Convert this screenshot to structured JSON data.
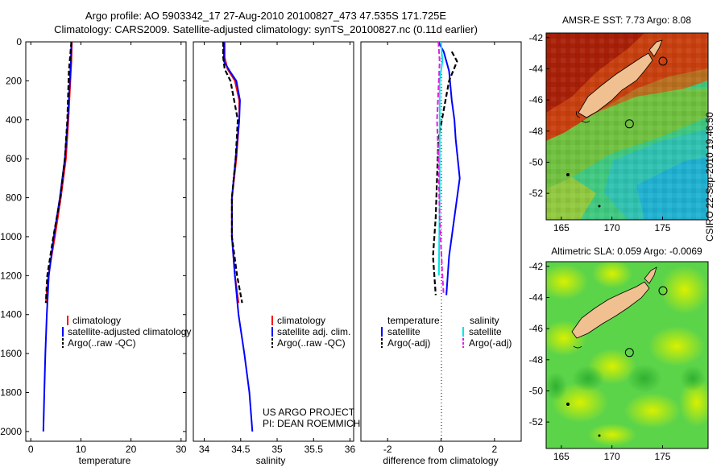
{
  "header": {
    "line1": "Argo profile: AO 5903342_17 27-Aug-2010 20100827_473 47.535S 171.725E",
    "line2": "Climatology: CARS2009. Satellite-adjusted climatology: synTS_20100827.nc (0.11d earlier)"
  },
  "credit": {
    "line1": "US ARGO PROJECT",
    "line2": "PI: DEAN ROEMMICH"
  },
  "stamp": "CSIRO 22-Sep-2010 19:46:50",
  "colors": {
    "climatology": "#ff0000",
    "satellite": "#0000ff",
    "argo": "#000000",
    "sal_satellite": "#00e5e5",
    "sal_argo": "#e020e0"
  },
  "chart_data": [
    {
      "type": "line",
      "name": "temperature-profile",
      "xlabel": "temperature",
      "ylabel": "",
      "xlim": [
        -1,
        31
      ],
      "ylim": [
        2050,
        0
      ],
      "xticks": [
        0,
        10,
        20,
        30
      ],
      "yticks": [
        0,
        200,
        400,
        600,
        800,
        1000,
        1200,
        1400,
        1600,
        1800,
        2000
      ],
      "series": [
        {
          "name": "climatology",
          "style": "solid-red",
          "points": [
            [
              8.2,
              0
            ],
            [
              8.1,
              100
            ],
            [
              7.9,
              200
            ],
            [
              7.5,
              400
            ],
            [
              7.0,
              600
            ],
            [
              6.0,
              800
            ],
            [
              4.8,
              1000
            ],
            [
              3.5,
              1200
            ],
            [
              3.0,
              1340
            ]
          ]
        },
        {
          "name": "satellite-adjusted climatology",
          "style": "solid-blue",
          "points": [
            [
              8.1,
              0
            ],
            [
              8.0,
              100
            ],
            [
              7.8,
              200
            ],
            [
              7.4,
              400
            ],
            [
              6.8,
              600
            ],
            [
              5.8,
              800
            ],
            [
              4.6,
              1000
            ],
            [
              3.6,
              1200
            ],
            [
              3.2,
              1400
            ],
            [
              2.9,
              1600
            ],
            [
              2.7,
              1800
            ],
            [
              2.5,
              2000
            ]
          ]
        },
        {
          "name": "Argo(..raw -QC)",
          "style": "dashed-black",
          "points": [
            [
              8.1,
              0
            ],
            [
              7.6,
              150
            ],
            [
              7.3,
              400
            ],
            [
              6.8,
              600
            ],
            [
              5.9,
              800
            ],
            [
              4.5,
              1000
            ],
            [
              3.3,
              1200
            ],
            [
              3.0,
              1340
            ]
          ]
        }
      ],
      "legend": [
        "climatology",
        "satellite-adjusted climatology",
        "Argo(..raw -QC)"
      ]
    },
    {
      "type": "line",
      "name": "salinity-profile",
      "xlabel": "salinity",
      "xlim": [
        33.85,
        36.05
      ],
      "ylim": [
        2050,
        0
      ],
      "xticks": [
        34,
        34.5,
        35,
        35.5,
        36
      ],
      "yticks": [],
      "series": [
        {
          "name": "climatology",
          "style": "solid-red",
          "points": [
            [
              34.28,
              0
            ],
            [
              34.28,
              80
            ],
            [
              34.32,
              140
            ],
            [
              34.42,
              200
            ],
            [
              34.48,
              300
            ],
            [
              34.48,
              400
            ],
            [
              34.44,
              600
            ],
            [
              34.38,
              800
            ],
            [
              34.38,
              1000
            ],
            [
              34.42,
              1200
            ],
            [
              34.47,
              1340
            ]
          ]
        },
        {
          "name": "satellite adj. clim.",
          "style": "solid-blue",
          "points": [
            [
              34.27,
              0
            ],
            [
              34.27,
              100
            ],
            [
              34.35,
              150
            ],
            [
              34.44,
              200
            ],
            [
              34.49,
              300
            ],
            [
              34.48,
              400
            ],
            [
              34.43,
              600
            ],
            [
              34.38,
              800
            ],
            [
              34.38,
              1000
            ],
            [
              34.42,
              1200
            ],
            [
              34.47,
              1400
            ],
            [
              34.55,
              1600
            ],
            [
              34.62,
              1800
            ],
            [
              34.66,
              2000
            ]
          ]
        },
        {
          "name": "Argo(..raw -QC)",
          "style": "dashed-black",
          "points": [
            [
              34.26,
              0
            ],
            [
              34.26,
              80
            ],
            [
              34.28,
              140
            ],
            [
              34.36,
              200
            ],
            [
              34.46,
              400
            ],
            [
              34.43,
              600
            ],
            [
              34.38,
              800
            ],
            [
              34.38,
              1000
            ],
            [
              34.45,
              1200
            ],
            [
              34.52,
              1340
            ]
          ]
        }
      ],
      "legend": [
        "climatology",
        "satellite adj. clim.",
        "Argo(..raw -QC)"
      ]
    },
    {
      "type": "line",
      "name": "difference-profile",
      "xlabel": "difference from climatology",
      "xlim": [
        -3,
        3
      ],
      "ylim": [
        2050,
        0
      ],
      "xticks": [
        -2,
        0,
        2
      ],
      "yticks": [],
      "series": [
        {
          "name": "temperature satellite",
          "style": "solid-blue",
          "points": [
            [
              -0.1,
              0
            ],
            [
              0.1,
              50
            ],
            [
              0.3,
              150
            ],
            [
              0.4,
              300
            ],
            [
              0.5,
              400
            ],
            [
              0.55,
              500
            ],
            [
              0.7,
              700
            ],
            [
              0.5,
              900
            ],
            [
              0.3,
              1100
            ],
            [
              0.2,
              1300
            ]
          ]
        },
        {
          "name": "temperature Argo(-adj)",
          "style": "dashed-black",
          "points": [
            [
              0.4,
              50
            ],
            [
              0.6,
              100
            ],
            [
              0.3,
              200
            ],
            [
              0.1,
              350
            ],
            [
              -0.1,
              500
            ],
            [
              -0.15,
              700
            ],
            [
              -0.2,
              900
            ],
            [
              -0.3,
              1100
            ],
            [
              -0.2,
              1300
            ]
          ]
        },
        {
          "name": "salinity satellite",
          "style": "solid-cyan",
          "points": [
            [
              0.0,
              0
            ],
            [
              0.05,
              100
            ],
            [
              -0.05,
              200
            ],
            [
              -0.05,
              500
            ],
            [
              -0.05,
              800
            ],
            [
              -0.08,
              1200
            ]
          ]
        },
        {
          "name": "salinity Argo(-adj)",
          "style": "dashed-magenta",
          "points": [
            [
              -0.1,
              0
            ],
            [
              -0.05,
              100
            ],
            [
              -0.1,
              250
            ],
            [
              -0.15,
              400
            ],
            [
              -0.1,
              600
            ],
            [
              -0.05,
              900
            ],
            [
              0.05,
              1200
            ],
            [
              0.1,
              1300
            ]
          ]
        }
      ],
      "legend_temperature": {
        "heading": "temperature",
        "items": [
          "satellite",
          "Argo(-adj)"
        ]
      },
      "legend_salinity": {
        "heading": "salinity",
        "items": [
          "satellite",
          "Argo(-adj)"
        ]
      }
    },
    {
      "type": "heatmap",
      "name": "sst-map",
      "title": "AMSR-E SST: 7.73 Argo: 8.08",
      "xlim": [
        163.5,
        179.5
      ],
      "ylim": [
        -53.7,
        -41.7
      ],
      "xticks": [
        165,
        170,
        175
      ],
      "yticks": [
        -42,
        -44,
        -46,
        -48,
        -50,
        -52
      ],
      "profile_marker": [
        171.725,
        -47.535
      ]
    },
    {
      "type": "heatmap",
      "name": "sla-map",
      "title": "Altimetric SLA: 0.059 Argo: -0.0069",
      "xlim": [
        163.5,
        179.5
      ],
      "ylim": [
        -53.7,
        -41.7
      ],
      "xticks": [
        165,
        170,
        175
      ],
      "yticks": [
        -42,
        -44,
        -46,
        -48,
        -50,
        -52
      ],
      "profile_marker": [
        171.725,
        -47.535
      ]
    }
  ]
}
